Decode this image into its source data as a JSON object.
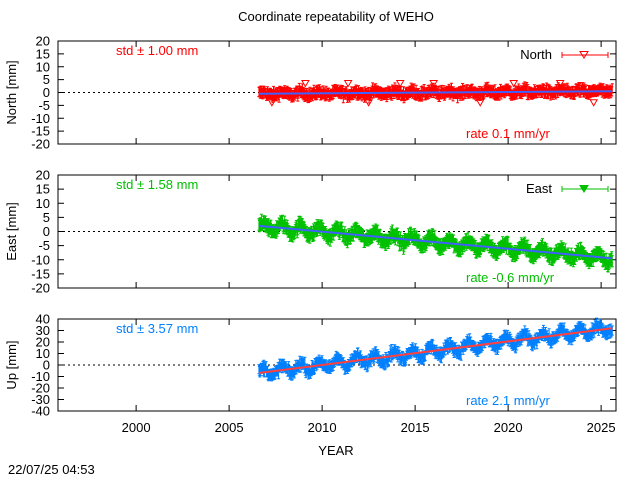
{
  "title": "Coordinate repeatability of WEHO",
  "timestamp": "22/07/25 04:53",
  "colors": {
    "north": "#ff0000",
    "east": "#00c000",
    "up": "#0080ff",
    "north_trend": "#4060ff",
    "east_trend": "#4060ff",
    "up_trend": "#ff4040"
  },
  "chart_data": [
    {
      "type": "scatter",
      "id": "north",
      "ylabel": "North [mm]",
      "ylim": [
        -20,
        20
      ],
      "yticks": [
        20,
        15,
        10,
        5,
        0,
        -5,
        -10,
        -15,
        -20
      ],
      "legend": "North",
      "legend_position": "top-right",
      "legend_marker": "triangle-down-open",
      "std_label": "std ± 1.00 mm",
      "rate_label": "rate  0.1 mm/yr",
      "x_start": 2006.6,
      "x_end": 2025.6,
      "trend": [
        [
          2006.6,
          -0.5
        ],
        [
          2025.6,
          0.5
        ]
      ],
      "scatter_sd": 1.0,
      "seasonal_amp": 0.6,
      "error_bar": 1.8
    },
    {
      "type": "scatter",
      "id": "east",
      "ylabel": "East [mm]",
      "ylim": [
        -20,
        20
      ],
      "yticks": [
        20,
        15,
        10,
        5,
        0,
        -5,
        -10,
        -15,
        -20
      ],
      "legend": "East",
      "legend_position": "top-right",
      "legend_marker": "triangle-down-filled",
      "std_label": "std ± 1.58 mm",
      "rate_label": "rate -0.6 mm/yr",
      "x_start": 2006.6,
      "x_end": 2025.6,
      "trend": [
        [
          2006.6,
          2.0
        ],
        [
          2025.6,
          -9.5
        ]
      ],
      "scatter_sd": 1.0,
      "seasonal_amp": 1.6,
      "error_bar": 2.0
    },
    {
      "type": "scatter",
      "id": "up",
      "ylabel": "Up [mm]",
      "ylim": [
        -40,
        40
      ],
      "yticks": [
        40,
        30,
        20,
        10,
        0,
        -10,
        -20,
        -30,
        -40
      ],
      "legend": "",
      "std_label": "std ± 3.57 mm",
      "rate_label": "rate  2.1 mm/yr",
      "x_start": 2006.6,
      "x_end": 2025.6,
      "trend": [
        [
          2006.6,
          -7.0
        ],
        [
          2025.6,
          32.0
        ]
      ],
      "scatter_sd": 2.5,
      "seasonal_amp": 4.0,
      "error_bar": 4.0
    }
  ],
  "xaxis": {
    "label": "YEAR",
    "xlim": [
      1995.8,
      2025.8
    ],
    "ticks": [
      2000,
      2005,
      2010,
      2015,
      2020,
      2025
    ]
  }
}
